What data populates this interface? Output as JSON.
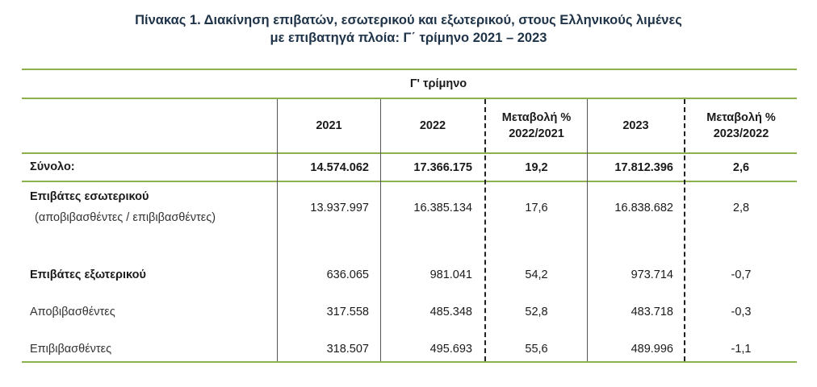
{
  "title": {
    "line1": "Πίνακας 1. Διακίνηση επιβατών, εσωτερικού και εξωτερικού, στους Ελληνικούς λιμένες",
    "line2": "με επιβατηγά πλοία: Γ΄ τρίμηνο 2021 – 2023"
  },
  "table": {
    "group_header": "Γ' τρίμηνο",
    "columns": {
      "y2021": "2021",
      "y2022": "2022",
      "change1_line1": "Μεταβολή %",
      "change1_line2": "2022/2021",
      "y2023": "2023",
      "change2_line1": "Μεταβολή %",
      "change2_line2": "2023/2022"
    },
    "rows": [
      {
        "label": "Σύνολο:",
        "v2021": "14.574.062",
        "v2022": "17.366.175",
        "c1": "19,2",
        "v2023": "17.812.396",
        "c2": "2,6"
      },
      {
        "label": "Επιβάτες εσωτερικού",
        "sublabel": "(αποβιβασθέντες / επιβιβασθέντες)",
        "v2021": "13.937.997",
        "v2022": "16.385.134",
        "c1": "17,6",
        "v2023": "16.838.682",
        "c2": "2,8"
      },
      {
        "label": "Επιβάτες εξωτερικού",
        "v2021": "636.065",
        "v2022": "981.041",
        "c1": "54,2",
        "v2023": "973.714",
        "c2": "-0,7"
      },
      {
        "label": "Αποβιβασθέντες",
        "v2021": "317.558",
        "v2022": "485.348",
        "c1": "52,8",
        "v2023": "483.718",
        "c2": "-0,3"
      },
      {
        "label": "Επιβιβασθέντες",
        "v2021": "318.507",
        "v2022": "495.693",
        "c1": "55,6",
        "v2023": "489.996",
        "c2": "-1,1"
      }
    ]
  }
}
